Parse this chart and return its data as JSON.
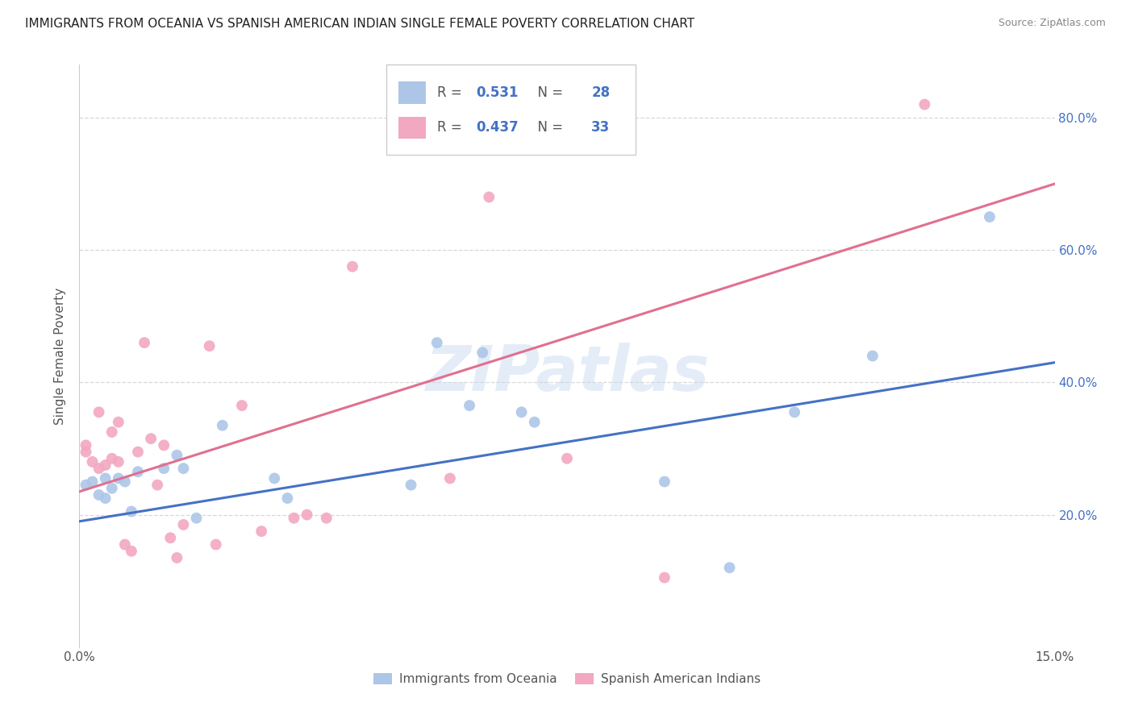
{
  "title": "IMMIGRANTS FROM OCEANIA VS SPANISH AMERICAN INDIAN SINGLE FEMALE POVERTY CORRELATION CHART",
  "source": "Source: ZipAtlas.com",
  "ylabel": "Single Female Poverty",
  "xlim": [
    0.0,
    0.15
  ],
  "ylim": [
    0.0,
    0.88
  ],
  "legend_label1": "Immigrants from Oceania",
  "legend_label2": "Spanish American Indians",
  "R1": 0.531,
  "N1": 28,
  "R2": 0.437,
  "N2": 33,
  "color_blue": "#adc6e8",
  "color_pink": "#f2a8c0",
  "line_color_blue": "#4472c4",
  "line_color_pink": "#e07090",
  "scatter_alpha": 0.9,
  "scatter_size": 100,
  "blue_x": [
    0.001,
    0.002,
    0.003,
    0.004,
    0.004,
    0.005,
    0.006,
    0.007,
    0.008,
    0.009,
    0.013,
    0.015,
    0.016,
    0.018,
    0.022,
    0.03,
    0.032,
    0.051,
    0.055,
    0.06,
    0.062,
    0.068,
    0.07,
    0.09,
    0.1,
    0.11,
    0.122,
    0.14
  ],
  "blue_y": [
    0.245,
    0.25,
    0.23,
    0.255,
    0.225,
    0.24,
    0.255,
    0.25,
    0.205,
    0.265,
    0.27,
    0.29,
    0.27,
    0.195,
    0.335,
    0.255,
    0.225,
    0.245,
    0.46,
    0.365,
    0.445,
    0.355,
    0.34,
    0.25,
    0.12,
    0.355,
    0.44,
    0.65
  ],
  "pink_x": [
    0.001,
    0.001,
    0.002,
    0.003,
    0.003,
    0.004,
    0.005,
    0.005,
    0.006,
    0.006,
    0.007,
    0.008,
    0.009,
    0.01,
    0.011,
    0.012,
    0.013,
    0.014,
    0.015,
    0.016,
    0.02,
    0.021,
    0.025,
    0.028,
    0.033,
    0.035,
    0.038,
    0.042,
    0.057,
    0.063,
    0.075,
    0.09,
    0.13
  ],
  "pink_y": [
    0.295,
    0.305,
    0.28,
    0.27,
    0.355,
    0.275,
    0.325,
    0.285,
    0.28,
    0.34,
    0.155,
    0.145,
    0.295,
    0.46,
    0.315,
    0.245,
    0.305,
    0.165,
    0.135,
    0.185,
    0.455,
    0.155,
    0.365,
    0.175,
    0.195,
    0.2,
    0.195,
    0.575,
    0.255,
    0.68,
    0.285,
    0.105,
    0.82
  ],
  "watermark": "ZIPatlas",
  "background_color": "#ffffff",
  "grid_color": "#d8d8d8",
  "blue_line_y0": 0.19,
  "blue_line_y1": 0.43,
  "pink_line_y0": 0.235,
  "pink_line_y1": 0.7
}
